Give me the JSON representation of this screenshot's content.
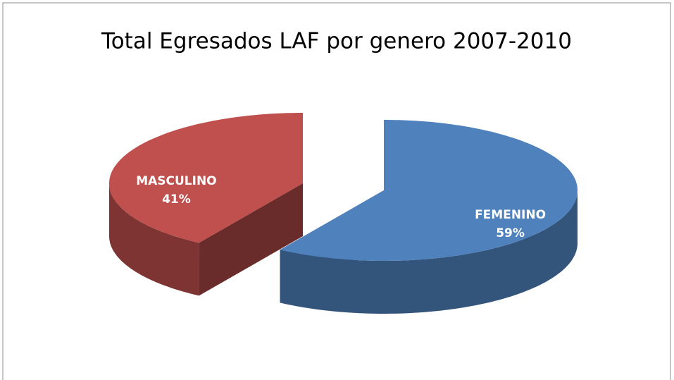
{
  "chart_data": {
    "type": "pie",
    "title": "Total Egresados LAF por genero 2007-2010",
    "categories": [
      "FEMENINO",
      "MASCULINO"
    ],
    "values": [
      59,
      41
    ],
    "value_labels": [
      "59%",
      "41%"
    ],
    "colors": [
      "#4f81bd",
      "#c0504d"
    ],
    "exploded": [
      false,
      true
    ]
  }
}
